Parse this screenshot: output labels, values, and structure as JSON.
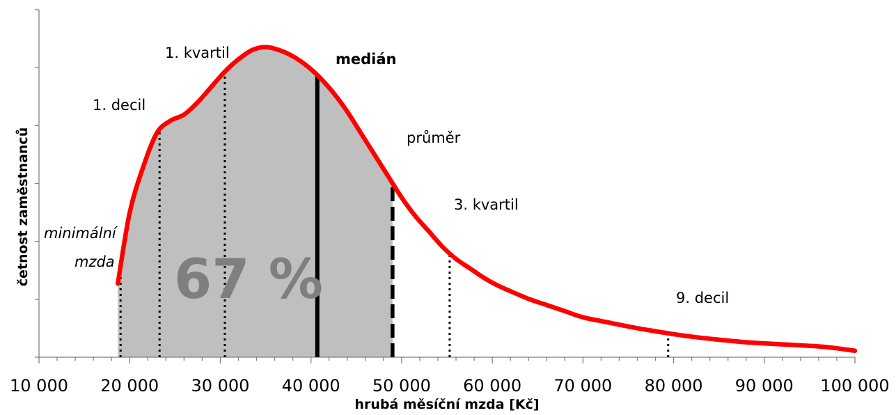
{
  "chart_data": {
    "type": "area",
    "xlabel": "hrubá měsíční mzda [Kč]",
    "ylabel": "četnost zaměstnanců",
    "xlim": [
      10000,
      100000
    ],
    "ylim": [
      0,
      1
    ],
    "x_ticks": [
      "10 000",
      "20 000",
      "30 000",
      "40 000",
      "50 000",
      "60 000",
      "70 000",
      "80 000",
      "90 000",
      "100 000"
    ],
    "y_tick_labels_shown": false,
    "curve": {
      "color": "#ff0000",
      "x": [
        18700,
        20000,
        21500,
        23000,
        24500,
        26000,
        27500,
        29000,
        30500,
        32000,
        33500,
        35000,
        36500,
        38000,
        39500,
        41000,
        42500,
        44000,
        45500,
        47000,
        48500,
        50000,
        51500,
        53000,
        54500,
        56000,
        57500,
        59000,
        60500,
        62000,
        64000,
        66000,
        68000,
        70000,
        72500,
        75000,
        77500,
        80000,
        82500,
        85000,
        87500,
        90000,
        92500,
        95000,
        96500,
        98000,
        100000
      ],
      "y": [
        0.24,
        0.47,
        0.62,
        0.73,
        0.77,
        0.79,
        0.83,
        0.88,
        0.93,
        0.97,
        1.0,
        1.01,
        1.0,
        0.98,
        0.95,
        0.91,
        0.86,
        0.8,
        0.73,
        0.66,
        0.59,
        0.52,
        0.46,
        0.41,
        0.36,
        0.32,
        0.29,
        0.26,
        0.235,
        0.215,
        0.19,
        0.17,
        0.15,
        0.13,
        0.115,
        0.1,
        0.087,
        0.075,
        0.065,
        0.057,
        0.05,
        0.045,
        0.041,
        0.037,
        0.034,
        0.029,
        0.021
      ]
    },
    "shaded_area": {
      "color": "#bfbfbf",
      "x_start": 18700,
      "x_end": 49000,
      "label": "67 %"
    },
    "markers": [
      {
        "label": "minimální mzda",
        "x": 19000,
        "style": "dotted"
      },
      {
        "label": "1. decil",
        "x": 23300,
        "style": "dotted"
      },
      {
        "label": "1. kvartil",
        "x": 30500,
        "style": "dotted"
      },
      {
        "label": "medián",
        "x": 40700,
        "style": "solid-bold"
      },
      {
        "label": "průměr",
        "x": 49000,
        "style": "dashed"
      },
      {
        "label": "3. kvartil",
        "x": 55300,
        "style": "dotted"
      },
      {
        "label": "9. decil",
        "x": 79400,
        "style": "dotted"
      }
    ],
    "grid": false,
    "legend": "none"
  },
  "annotations": {
    "minimal_wage_line1": "minimální",
    "minimal_wage_line2": "mzda",
    "decil1": "1. decil",
    "kvartil1": "1. kvartil",
    "median": "medián",
    "prumer": "průměr",
    "kvartil3": "3. kvartil",
    "decil9": "9. decil",
    "share": "67 %"
  }
}
